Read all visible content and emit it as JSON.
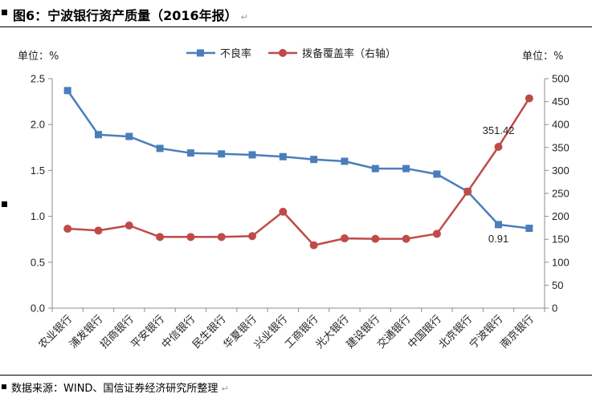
{
  "figure_title": "图6：宁波银行资产质量（2016年报）",
  "return_mark": "↵",
  "source_note": "数据来源：WIND、国信证券经济研究所整理",
  "chart_data": {
    "type": "line",
    "categories": [
      "农业银行",
      "浦发银行",
      "招商银行",
      "平安银行",
      "中信银行",
      "民生银行",
      "华夏银行",
      "兴业银行",
      "工商银行",
      "光大银行",
      "建设银行",
      "交通银行",
      "中国银行",
      "北京银行",
      "宁波银行",
      "南京银行"
    ],
    "series": [
      {
        "name": "不良率",
        "axis": "left",
        "color": "#4a7ebb",
        "marker": "square",
        "values": [
          2.37,
          1.89,
          1.87,
          1.74,
          1.69,
          1.68,
          1.67,
          1.65,
          1.62,
          1.6,
          1.52,
          1.52,
          1.46,
          1.27,
          0.91,
          0.87
        ]
      },
      {
        "name": "拨备覆盖率（右轴）",
        "axis": "right",
        "color": "#be4b48",
        "marker": "circle",
        "values": [
          173,
          169,
          180,
          155,
          155,
          155,
          157,
          210,
          137,
          152,
          151,
          151,
          162,
          254,
          351.42,
          457
        ]
      }
    ],
    "left_axis": {
      "unit_label": "单位：%",
      "min": 0,
      "max": 2.5,
      "step": 0.5,
      "ticks": [
        "0.0",
        "0.5",
        "1.0",
        "1.5",
        "2.0",
        "2.5"
      ]
    },
    "right_axis": {
      "unit_label": "单位：%",
      "min": 0,
      "max": 500,
      "step": 50,
      "ticks": [
        "0",
        "50",
        "100",
        "150",
        "200",
        "250",
        "300",
        "350",
        "400",
        "450",
        "500"
      ]
    },
    "annotations": [
      {
        "text": "351.42",
        "series": 1,
        "index": 14
      },
      {
        "text": "0.91",
        "series": 0,
        "index": 14
      }
    ],
    "legend_position": "top-center",
    "grid": false
  }
}
